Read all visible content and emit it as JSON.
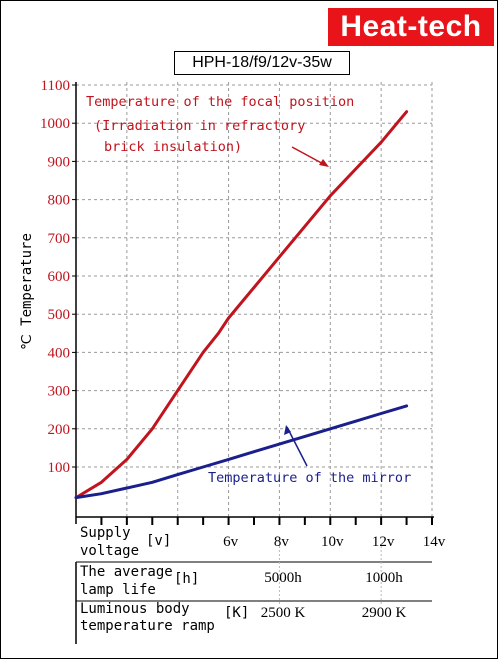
{
  "brand": "Heat-tech",
  "model": "HPH-18/f9/12v-35w",
  "chart_data": {
    "type": "line",
    "ylabel": "℃ Temperature",
    "yticks": [
      100,
      200,
      300,
      400,
      500,
      600,
      700,
      800,
      900,
      1000,
      1100
    ],
    "ylim": [
      0,
      1100
    ],
    "xlim": [
      0,
      14
    ],
    "xticks": [
      "6v",
      "8v",
      "10v",
      "12v",
      "14v"
    ],
    "grid": true,
    "series": [
      {
        "name": "Temperature of the focal position",
        "name_line2": "(Irradiation in refractory",
        "name_line3": "brick insulation)",
        "color": "#c0141e",
        "x": [
          0,
          1,
          2,
          3,
          4,
          5,
          5.6,
          6,
          7,
          8,
          9,
          10,
          11,
          12,
          13
        ],
        "y": [
          20,
          60,
          120,
          200,
          300,
          400,
          450,
          490,
          570,
          650,
          730,
          810,
          880,
          950,
          1030
        ]
      },
      {
        "name": "Temperature of the mirror",
        "color": "#1a1f8c",
        "x": [
          0,
          1,
          2,
          3,
          4,
          5,
          6,
          7,
          8,
          9,
          10,
          11,
          12,
          13
        ],
        "y": [
          20,
          30,
          45,
          60,
          80,
          100,
          120,
          140,
          160,
          180,
          200,
          220,
          240,
          260
        ]
      }
    ]
  },
  "table": {
    "rows": [
      {
        "label1": "Supply",
        "label2": "voltage",
        "unit": "[v]"
      },
      {
        "label1": "The average",
        "label2": "lamp life",
        "unit": "[h]",
        "values": [
          "5000h",
          "1000h"
        ]
      },
      {
        "label1": "Luminous body",
        "label2": "temperature ramp",
        "unit": "[K]",
        "values": [
          "2500 K",
          "2900 K"
        ]
      }
    ]
  }
}
